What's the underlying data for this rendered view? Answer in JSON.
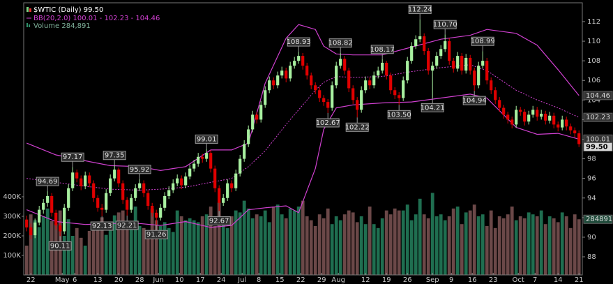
{
  "chart_data": {
    "type": "candlestick",
    "legend": [
      "$WTIC (Daily) 99.50",
      "BB(20,2.0) 100.01 - 102.23 - 104.46",
      "Volume 284,891"
    ],
    "up_color": "#a8f0a0",
    "down_color": "#e00000",
    "volume_up_color": "#1f6e50",
    "volume_down_color": "#6b4848",
    "candles": [
      [
        91.8,
        92.2,
        90.6,
        91.0
      ],
      [
        91.0,
        91.4,
        89.8,
        90.2
      ],
      [
        90.2,
        91.9,
        89.9,
        91.5
      ],
      [
        91.5,
        93.2,
        91.2,
        92.8
      ],
      [
        92.8,
        93.9,
        92.4,
        93.5
      ],
      [
        93.5,
        94.69,
        93.1,
        94.2
      ],
      [
        94.2,
        94.5,
        92.1,
        92.5
      ],
      [
        92.5,
        92.8,
        90.8,
        91.2
      ],
      [
        91.2,
        91.5,
        90.11,
        90.6
      ],
      [
        90.6,
        93.4,
        90.3,
        93.0
      ],
      [
        93.0,
        95.4,
        92.7,
        95.0
      ],
      [
        95.0,
        97.17,
        94.7,
        96.6
      ],
      [
        96.6,
        96.9,
        95.6,
        96.0
      ],
      [
        96.0,
        96.3,
        94.8,
        95.2
      ],
      [
        95.2,
        96.7,
        94.9,
        96.3
      ],
      [
        96.3,
        96.6,
        95.1,
        95.5
      ],
      [
        95.5,
        95.8,
        93.6,
        94.0
      ],
      [
        94.0,
        94.3,
        92.6,
        93.0
      ],
      [
        93.0,
        93.4,
        92.13,
        92.8
      ],
      [
        92.8,
        94.9,
        92.5,
        94.5
      ],
      [
        94.5,
        96.4,
        94.2,
        96.0
      ],
      [
        96.0,
        97.35,
        95.7,
        96.9
      ],
      [
        96.9,
        97.1,
        95.1,
        95.5
      ],
      [
        95.5,
        95.8,
        93.4,
        93.8
      ],
      [
        93.8,
        94.1,
        92.21,
        92.8
      ],
      [
        92.8,
        94.4,
        92.5,
        94.0
      ],
      [
        94.0,
        95.4,
        93.7,
        95.0
      ],
      [
        95.0,
        95.92,
        94.7,
        95.5
      ],
      [
        95.5,
        95.8,
        94.1,
        94.5
      ],
      [
        94.5,
        94.8,
        92.8,
        93.2
      ],
      [
        93.2,
        93.5,
        92.1,
        92.5
      ],
      [
        92.5,
        92.8,
        91.26,
        92.0
      ],
      [
        92.0,
        93.4,
        91.7,
        93.0
      ],
      [
        93.0,
        94.6,
        92.7,
        94.2
      ],
      [
        94.2,
        95.2,
        93.9,
        94.8
      ],
      [
        94.8,
        95.9,
        94.5,
        95.5
      ],
      [
        95.5,
        96.4,
        95.2,
        96.0
      ],
      [
        96.0,
        96.3,
        94.9,
        95.3
      ],
      [
        95.3,
        96.6,
        95.0,
        96.2
      ],
      [
        96.2,
        97.4,
        95.9,
        97.0
      ],
      [
        97.0,
        97.9,
        96.7,
        97.5
      ],
      [
        97.5,
        98.6,
        97.2,
        98.2
      ],
      [
        98.2,
        98.5,
        97.6,
        98.0
      ],
      [
        98.0,
        99.01,
        97.7,
        98.6
      ],
      [
        98.6,
        98.9,
        96.6,
        97.0
      ],
      [
        97.0,
        97.3,
        94.6,
        95.0
      ],
      [
        95.0,
        95.3,
        92.67,
        93.5
      ],
      [
        93.5,
        94.4,
        93.2,
        94.0
      ],
      [
        94.0,
        95.9,
        93.7,
        95.5
      ],
      [
        95.5,
        95.8,
        94.6,
        95.0
      ],
      [
        95.0,
        96.9,
        94.7,
        96.5
      ],
      [
        96.5,
        98.4,
        96.2,
        98.0
      ],
      [
        98.0,
        99.9,
        97.7,
        99.5
      ],
      [
        99.5,
        101.4,
        99.2,
        101.0
      ],
      [
        101.0,
        102.9,
        100.7,
        102.5
      ],
      [
        102.5,
        102.8,
        101.6,
        102.0
      ],
      [
        102.0,
        103.9,
        101.7,
        103.5
      ],
      [
        103.5,
        105.4,
        103.2,
        105.0
      ],
      [
        105.0,
        106.4,
        104.7,
        106.0
      ],
      [
        106.0,
        106.3,
        105.1,
        105.5
      ],
      [
        105.5,
        106.9,
        105.2,
        106.5
      ],
      [
        106.5,
        107.4,
        106.2,
        107.0
      ],
      [
        107.0,
        107.3,
        105.8,
        106.2
      ],
      [
        106.2,
        107.9,
        105.9,
        107.5
      ],
      [
        107.5,
        108.4,
        107.2,
        108.0
      ],
      [
        108.0,
        108.93,
        107.7,
        108.5
      ],
      [
        108.5,
        108.8,
        107.1,
        107.5
      ],
      [
        107.5,
        107.8,
        106.1,
        106.5
      ],
      [
        106.5,
        106.8,
        105.1,
        105.5
      ],
      [
        105.5,
        105.8,
        104.6,
        105.0
      ],
      [
        105.0,
        105.3,
        103.8,
        104.2
      ],
      [
        104.2,
        104.5,
        103.4,
        103.8
      ],
      [
        103.8,
        104.1,
        102.67,
        103.2
      ],
      [
        103.2,
        105.9,
        102.9,
        105.5
      ],
      [
        105.5,
        107.9,
        105.2,
        107.5
      ],
      [
        107.5,
        108.82,
        107.2,
        108.2
      ],
      [
        108.2,
        108.5,
        106.6,
        107.0
      ],
      [
        107.0,
        107.3,
        104.8,
        105.2
      ],
      [
        105.2,
        105.5,
        103.6,
        104.0
      ],
      [
        104.0,
        104.3,
        102.22,
        103.0
      ],
      [
        103.0,
        105.4,
        102.7,
        105.0
      ],
      [
        105.0,
        106.4,
        104.7,
        106.0
      ],
      [
        106.0,
        106.3,
        105.1,
        105.5
      ],
      [
        105.5,
        106.9,
        105.2,
        106.5
      ],
      [
        106.5,
        107.4,
        106.2,
        107.0
      ],
      [
        107.0,
        108.17,
        106.7,
        107.8
      ],
      [
        107.8,
        108.0,
        106.1,
        106.5
      ],
      [
        106.5,
        106.8,
        104.6,
        105.0
      ],
      [
        105.0,
        105.3,
        104.1,
        104.5
      ],
      [
        104.5,
        104.8,
        103.5,
        104.2
      ],
      [
        104.2,
        106.4,
        103.9,
        106.0
      ],
      [
        106.0,
        108.4,
        105.7,
        108.0
      ],
      [
        108.0,
        109.9,
        107.7,
        109.5
      ],
      [
        109.5,
        110.6,
        109.2,
        110.2
      ],
      [
        110.2,
        112.24,
        109.9,
        110.5
      ],
      [
        110.5,
        110.8,
        108.6,
        109.0
      ],
      [
        109.0,
        109.3,
        106.6,
        107.0
      ],
      [
        107.0,
        107.9,
        104.21,
        107.5
      ],
      [
        107.5,
        108.9,
        107.2,
        108.5
      ],
      [
        108.5,
        109.6,
        108.2,
        109.2
      ],
      [
        109.2,
        110.7,
        108.9,
        110.0
      ],
      [
        110.0,
        110.3,
        107.6,
        108.0
      ],
      [
        108.0,
        108.3,
        106.8,
        107.2
      ],
      [
        107.2,
        108.9,
        106.9,
        108.5
      ],
      [
        108.5,
        108.8,
        106.6,
        107.0
      ],
      [
        107.0,
        108.7,
        106.7,
        108.3
      ],
      [
        108.3,
        108.6,
        106.6,
        107.0
      ],
      [
        107.0,
        107.3,
        104.94,
        105.5
      ],
      [
        105.5,
        107.9,
        105.2,
        107.5
      ],
      [
        107.5,
        108.99,
        107.2,
        108.0
      ],
      [
        108.0,
        108.3,
        105.6,
        106.0
      ],
      [
        106.0,
        106.3,
        104.6,
        105.0
      ],
      [
        105.0,
        105.3,
        103.6,
        104.0
      ],
      [
        104.0,
        104.3,
        102.8,
        103.2
      ],
      [
        103.2,
        103.5,
        102.1,
        102.5
      ],
      [
        102.5,
        102.8,
        101.6,
        102.0
      ],
      [
        102.0,
        102.3,
        101.1,
        101.5
      ],
      [
        101.5,
        103.4,
        101.2,
        103.0
      ],
      [
        103.0,
        103.3,
        102.4,
        102.8
      ],
      [
        102.8,
        103.1,
        101.4,
        101.8
      ],
      [
        101.8,
        102.9,
        101.5,
        102.5
      ],
      [
        102.5,
        103.4,
        102.2,
        103.0
      ],
      [
        103.0,
        103.3,
        101.9,
        102.3
      ],
      [
        102.3,
        103.0,
        102.0,
        102.6
      ],
      [
        102.6,
        102.9,
        101.5,
        101.9
      ],
      [
        101.9,
        102.8,
        101.6,
        102.4
      ],
      [
        102.4,
        102.7,
        101.1,
        101.5
      ],
      [
        101.5,
        101.8,
        100.8,
        101.2
      ],
      [
        101.2,
        102.4,
        100.9,
        102.0
      ],
      [
        102.0,
        102.3,
        100.9,
        101.3
      ],
      [
        101.3,
        101.6,
        100.5,
        100.9
      ],
      [
        100.9,
        101.2,
        100.2,
        100.6
      ],
      [
        100.6,
        100.9,
        99.2,
        99.5
      ]
    ],
    "volume": [
      150000,
      310000,
      280000,
      245000,
      300000,
      340000,
      275000,
      260000,
      330000,
      200000,
      285000,
      200000,
      240000,
      190000,
      150000,
      225000,
      260000,
      230000,
      295000,
      205000,
      250000,
      305000,
      320000,
      330000,
      275000,
      250000,
      350000,
      250000,
      240000,
      230000,
      340000,
      280000,
      250000,
      270000,
      240000,
      220000,
      330000,
      300000,
      280000,
      290000,
      280000,
      270000,
      300000,
      310000,
      350000,
      250000,
      370000,
      260000,
      240000,
      300000,
      330000,
      320000,
      380000,
      340000,
      290000,
      310000,
      300000,
      330000,
      270000,
      350000,
      360000,
      310000,
      290000,
      340000,
      330000,
      350000,
      380000,
      300000,
      280000,
      250000,
      310000,
      290000,
      340000,
      260000,
      300000,
      280000,
      310000,
      330000,
      320000,
      270000,
      300000,
      260000,
      350000,
      260000,
      240000,
      290000,
      330000,
      310000,
      340000,
      330000,
      330000,
      360000,
      280000,
      310000,
      390000,
      310000,
      290000,
      420000,
      300000,
      310000,
      280000,
      300000,
      340000,
      350000,
      260000,
      320000,
      330000,
      360000,
      300000,
      310000,
      250000,
      330000,
      240000,
      300000,
      290000,
      310000,
      350000,
      280000,
      300000,
      290000,
      320000,
      310000,
      300000,
      330000,
      260000,
      300000,
      290000,
      270000,
      320000,
      300000,
      240000,
      310000,
      284891
    ],
    "bands": {
      "color": "#d040d0",
      "x": [
        0,
        7,
        14,
        20,
        27,
        32,
        38,
        44,
        49,
        53,
        57,
        62,
        65,
        69,
        71,
        74,
        78,
        85,
        92,
        99,
        106,
        110,
        117,
        122,
        127,
        132
      ],
      "upper": [
        99.6,
        98.4,
        97.8,
        97.3,
        97.2,
        96.8,
        97.2,
        98.9,
        98.9,
        99.6,
        105.7,
        110.3,
        111.7,
        111.2,
        109.5,
        108.7,
        108.6,
        108.6,
        109.4,
        110.2,
        110.6,
        111.2,
        110.8,
        109.6,
        107.1,
        104.46
      ],
      "middle": [
        96.0,
        95.6,
        95.2,
        94.9,
        94.8,
        94.9,
        95.1,
        95.6,
        96.0,
        97.2,
        98.8,
        101.5,
        103.0,
        105.0,
        105.8,
        106.4,
        106.3,
        106.4,
        106.9,
        107.3,
        107.6,
        107.0,
        105.0,
        104.0,
        103.2,
        102.23
      ],
      "lower": [
        92.8,
        91.6,
        91.3,
        91.4,
        91.4,
        91.2,
        91.6,
        91.0,
        91.2,
        92.8,
        93.0,
        93.2,
        92.5,
        97.0,
        101.0,
        103.2,
        103.5,
        103.7,
        103.8,
        104.2,
        104.6,
        104.2,
        101.2,
        100.5,
        100.6,
        100.01
      ]
    },
    "annotations": [
      {
        "index": 5,
        "at": "high",
        "value": 94.69
      },
      {
        "index": 8,
        "at": "low",
        "value": 90.11
      },
      {
        "index": 11,
        "at": "high",
        "value": 97.17
      },
      {
        "index": 18,
        "at": "low",
        "value": 92.13
      },
      {
        "index": 21,
        "at": "high",
        "value": 97.35
      },
      {
        "index": 24,
        "at": "low",
        "value": 92.21
      },
      {
        "index": 27,
        "at": "high",
        "value": 95.92
      },
      {
        "index": 31,
        "at": "low",
        "value": 91.26
      },
      {
        "index": 43,
        "at": "high",
        "value": 99.01
      },
      {
        "index": 46,
        "at": "low",
        "value": 92.67
      },
      {
        "index": 65,
        "at": "high",
        "value": 108.93
      },
      {
        "index": 72,
        "at": "low",
        "value": 102.67
      },
      {
        "index": 75,
        "at": "high",
        "value": 108.82
      },
      {
        "index": 79,
        "at": "low",
        "value": 102.22
      },
      {
        "index": 85,
        "at": "high",
        "value": 108.17
      },
      {
        "index": 89,
        "at": "low",
        "value": 103.5,
        "label": "103.50"
      },
      {
        "index": 94,
        "at": "high",
        "value": 112.24
      },
      {
        "index": 97,
        "at": "low",
        "value": 104.21
      },
      {
        "index": 100,
        "at": "high",
        "value": 110.7,
        "label": "110.70"
      },
      {
        "index": 107,
        "at": "low",
        "value": 104.94
      },
      {
        "index": 109,
        "at": "high",
        "value": 108.99
      }
    ],
    "last_price": {
      "value": 99.5,
      "label": "99.50"
    },
    "xlim": [
      -0.7,
      132.8
    ],
    "xticks": [
      {
        "value": 1,
        "label": "22"
      },
      {
        "value": 8.5,
        "label": "May"
      },
      {
        "value": 11.5,
        "label": "6"
      },
      {
        "value": 17,
        "label": "13"
      },
      {
        "value": 22,
        "label": "20"
      },
      {
        "value": 27,
        "label": "28"
      },
      {
        "value": 31.5,
        "label": "Jun"
      },
      {
        "value": 36.5,
        "label": "10"
      },
      {
        "value": 41.5,
        "label": "17"
      },
      {
        "value": 46.5,
        "label": "24"
      },
      {
        "value": 51.5,
        "label": "Jul"
      },
      {
        "value": 55.5,
        "label": "8"
      },
      {
        "value": 60.5,
        "label": "15"
      },
      {
        "value": 65.5,
        "label": "22"
      },
      {
        "value": 70.5,
        "label": "29"
      },
      {
        "value": 74.5,
        "label": "Aug"
      },
      {
        "value": 81,
        "label": "12"
      },
      {
        "value": 86,
        "label": "19"
      },
      {
        "value": 91,
        "label": "26"
      },
      {
        "value": 97,
        "label": "Sep"
      },
      {
        "value": 101.5,
        "label": "9"
      },
      {
        "value": 106.5,
        "label": "16"
      },
      {
        "value": 111.5,
        "label": "23"
      },
      {
        "value": 117.5,
        "label": "Oct"
      },
      {
        "value": 121.5,
        "label": "7"
      },
      {
        "value": 127,
        "label": "14"
      },
      {
        "value": 132,
        "label": "21"
      }
    ],
    "ylim": [
      86.15,
      113.92
    ],
    "yticks": [
      88,
      90,
      92,
      94,
      96,
      98,
      100,
      102,
      104,
      106,
      108,
      110,
      112
    ],
    "volume_ylim": [
      0,
      1393000
    ],
    "volume_ticks": [
      {
        "value": 100000,
        "label": "100K"
      },
      {
        "value": 200000,
        "label": "200K"
      },
      {
        "value": 300000,
        "label": "300K"
      },
      {
        "value": 400000,
        "label": "400K"
      }
    ]
  }
}
